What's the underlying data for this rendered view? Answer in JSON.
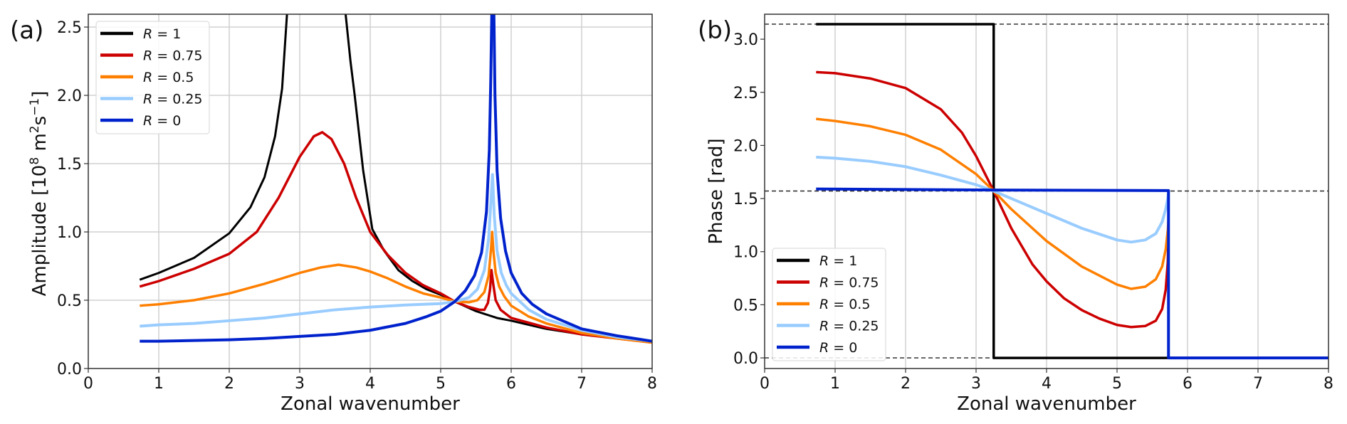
{
  "chart_data": [
    {
      "type": "line",
      "panel_label": "(a)",
      "xlabel": "Zonal wavenumber",
      "ylabel": "Amplitude [10",
      "ylabel_sup1": "8",
      "ylabel_mid": " m",
      "ylabel_sup2": "2",
      "ylabel_mid2": "s",
      "ylabel_sup3": "−1",
      "ylabel_end": "]",
      "xlim": [
        0,
        8
      ],
      "ylim": [
        0,
        2.594
      ],
      "xticks": [
        "0",
        "1",
        "2",
        "3",
        "4",
        "5",
        "6",
        "7",
        "8"
      ],
      "yticks": [
        "0.0",
        "0.5",
        "1.0",
        "1.5",
        "2.0",
        "2.5"
      ],
      "grid": true,
      "legend_position": "upper-left",
      "series": [
        {
          "name": "R = 1",
          "r_symbol": "R",
          "r_rest": " = 1",
          "color": "#000000",
          "width": 3,
          "segments": [
            [
              [
                0.73,
                0.65
              ],
              [
                1,
                0.7
              ],
              [
                1.5,
                0.81
              ],
              [
                2,
                0.99
              ],
              [
                2.3,
                1.18
              ],
              [
                2.5,
                1.4
              ],
              [
                2.65,
                1.7
              ],
              [
                2.75,
                2.05
              ],
              [
                2.82,
                2.6
              ]
            ],
            [
              [
                3.65,
                2.6
              ],
              [
                3.72,
                2.25
              ],
              [
                3.78,
                2.0
              ],
              [
                3.9,
                1.45
              ],
              [
                4.03,
                1.02
              ],
              [
                4.2,
                0.86
              ],
              [
                4.4,
                0.72
              ],
              [
                4.6,
                0.64
              ],
              [
                4.8,
                0.58
              ],
              [
                5.0,
                0.54
              ],
              [
                5.2,
                0.49
              ],
              [
                5.5,
                0.42
              ],
              [
                5.8,
                0.37
              ],
              [
                6.0,
                0.35
              ],
              [
                6.5,
                0.29
              ],
              [
                7.0,
                0.25
              ],
              [
                7.5,
                0.22
              ],
              [
                8.0,
                0.19
              ]
            ]
          ]
        },
        {
          "name": "R = 0.75",
          "r_symbol": "R",
          "r_rest": " = 0.75",
          "color": "#cc0000",
          "width": 3.5,
          "segments": [
            [
              [
                0.73,
                0.6
              ],
              [
                1,
                0.64
              ],
              [
                1.5,
                0.73
              ],
              [
                2,
                0.84
              ],
              [
                2.39,
                1.0
              ],
              [
                2.7,
                1.25
              ],
              [
                3.0,
                1.55
              ],
              [
                3.2,
                1.7
              ],
              [
                3.32,
                1.73
              ],
              [
                3.45,
                1.68
              ],
              [
                3.63,
                1.5
              ],
              [
                3.8,
                1.25
              ],
              [
                4.0,
                1.0
              ],
              [
                4.25,
                0.83
              ],
              [
                4.5,
                0.7
              ],
              [
                4.75,
                0.61
              ],
              [
                5.0,
                0.55
              ],
              [
                5.2,
                0.49
              ],
              [
                5.4,
                0.45
              ],
              [
                5.55,
                0.43
              ],
              [
                5.62,
                0.43
              ],
              [
                5.67,
                0.48
              ],
              [
                5.7,
                0.58
              ],
              [
                5.72,
                0.72
              ],
              [
                5.745,
                0.62
              ],
              [
                5.78,
                0.5
              ],
              [
                5.85,
                0.43
              ],
              [
                6.0,
                0.37
              ],
              [
                6.5,
                0.3
              ],
              [
                7.0,
                0.25
              ],
              [
                7.5,
                0.22
              ],
              [
                8.0,
                0.19
              ]
            ]
          ]
        },
        {
          "name": "R = 0.5",
          "r_symbol": "R",
          "r_rest": " = 0.5",
          "color": "#ff7f00",
          "width": 3.5,
          "segments": [
            [
              [
                0.73,
                0.46
              ],
              [
                1,
                0.47
              ],
              [
                1.5,
                0.5
              ],
              [
                2,
                0.55
              ],
              [
                2.5,
                0.62
              ],
              [
                3.0,
                0.7
              ],
              [
                3.3,
                0.74
              ],
              [
                3.55,
                0.76
              ],
              [
                3.8,
                0.74
              ],
              [
                4.0,
                0.71
              ],
              [
                4.25,
                0.66
              ],
              [
                4.5,
                0.6
              ],
              [
                4.75,
                0.55
              ],
              [
                5.0,
                0.52
              ],
              [
                5.2,
                0.49
              ],
              [
                5.4,
                0.485
              ],
              [
                5.52,
                0.5
              ],
              [
                5.62,
                0.56
              ],
              [
                5.68,
                0.68
              ],
              [
                5.715,
                0.88
              ],
              [
                5.73,
                1.0
              ],
              [
                5.75,
                0.85
              ],
              [
                5.78,
                0.7
              ],
              [
                5.83,
                0.6
              ],
              [
                5.9,
                0.53
              ],
              [
                6.0,
                0.46
              ],
              [
                6.25,
                0.38
              ],
              [
                6.5,
                0.33
              ],
              [
                7.0,
                0.26
              ],
              [
                7.5,
                0.22
              ],
              [
                8.0,
                0.19
              ]
            ]
          ]
        },
        {
          "name": "R = 0.25",
          "r_symbol": "R",
          "r_rest": " = 0.25",
          "color": "#99ccff",
          "width": 4,
          "segments": [
            [
              [
                0.73,
                0.31
              ],
              [
                1,
                0.32
              ],
              [
                1.5,
                0.33
              ],
              [
                2,
                0.35
              ],
              [
                2.5,
                0.37
              ],
              [
                3.0,
                0.4
              ],
              [
                3.5,
                0.43
              ],
              [
                4.0,
                0.45
              ],
              [
                4.5,
                0.465
              ],
              [
                5.0,
                0.475
              ],
              [
                5.2,
                0.49
              ],
              [
                5.4,
                0.52
              ],
              [
                5.52,
                0.58
              ],
              [
                5.62,
                0.72
              ],
              [
                5.68,
                0.95
              ],
              [
                5.71,
                1.2
              ],
              [
                5.735,
                1.42
              ],
              [
                5.76,
                1.12
              ],
              [
                5.8,
                0.86
              ],
              [
                5.86,
                0.7
              ],
              [
                5.93,
                0.61
              ],
              [
                6.0,
                0.55
              ],
              [
                6.25,
                0.43
              ],
              [
                6.5,
                0.36
              ],
              [
                7.0,
                0.28
              ],
              [
                7.5,
                0.23
              ],
              [
                8.0,
                0.2
              ]
            ]
          ]
        },
        {
          "name": "R = 0",
          "r_symbol": "R",
          "r_rest": " = 0",
          "color": "#0022cc",
          "width": 4,
          "segments": [
            [
              [
                0.73,
                0.2
              ],
              [
                1,
                0.2
              ],
              [
                1.5,
                0.205
              ],
              [
                2,
                0.21
              ],
              [
                2.5,
                0.22
              ],
              [
                3.0,
                0.235
              ],
              [
                3.5,
                0.25
              ],
              [
                4.0,
                0.28
              ],
              [
                4.5,
                0.33
              ],
              [
                4.8,
                0.38
              ],
              [
                5.0,
                0.42
              ],
              [
                5.2,
                0.49
              ],
              [
                5.35,
                0.57
              ],
              [
                5.48,
                0.68
              ],
              [
                5.58,
                0.85
              ],
              [
                5.65,
                1.15
              ],
              [
                5.69,
                1.6
              ],
              [
                5.71,
                2.1
              ],
              [
                5.725,
                2.6
              ]
            ],
            [
              [
                5.755,
                2.6
              ],
              [
                5.77,
                2.0
              ],
              [
                5.8,
                1.45
              ],
              [
                5.85,
                1.1
              ],
              [
                5.92,
                0.86
              ],
              [
                6.0,
                0.7
              ],
              [
                6.15,
                0.55
              ],
              [
                6.3,
                0.47
              ],
              [
                6.5,
                0.4
              ],
              [
                7.0,
                0.29
              ],
              [
                7.5,
                0.24
              ],
              [
                8.0,
                0.2
              ]
            ]
          ]
        }
      ]
    },
    {
      "type": "line",
      "panel_label": "(b)",
      "xlabel": "Zonal wavenumber",
      "ylabel": "Phase [rad]",
      "xlim": [
        0,
        8
      ],
      "ylim": [
        -0.1,
        3.235
      ],
      "xticks": [
        "0",
        "1",
        "2",
        "3",
        "4",
        "5",
        "6",
        "7",
        "8"
      ],
      "yticks": [
        "0.0",
        "0.5",
        "1.0",
        "1.5",
        "2.0",
        "2.5",
        "3.0"
      ],
      "grid": true,
      "reference_lines": [
        0,
        1.5708,
        3.1416
      ],
      "legend_position": "lower-left",
      "series": [
        {
          "name": "R = 1",
          "r_symbol": "R",
          "r_rest": " = 1",
          "color": "#000000",
          "width": 3.5,
          "segments": [
            [
              [
                0.73,
                3.1416
              ],
              [
                3.25,
                3.1416
              ],
              [
                3.25,
                0
              ],
              [
                8.0,
                0
              ]
            ]
          ]
        },
        {
          "name": "R = 0.75",
          "r_symbol": "R",
          "r_rest": " = 0.75",
          "color": "#cc0000",
          "width": 3.5,
          "segments": [
            [
              [
                0.73,
                2.69
              ],
              [
                1,
                2.68
              ],
              [
                1.5,
                2.63
              ],
              [
                2,
                2.54
              ],
              [
                2.5,
                2.34
              ],
              [
                2.8,
                2.12
              ],
              [
                3.0,
                1.9
              ],
              [
                3.25,
                1.5708
              ],
              [
                3.5,
                1.22
              ],
              [
                3.8,
                0.88
              ],
              [
                4.0,
                0.72
              ],
              [
                4.25,
                0.56
              ],
              [
                4.5,
                0.45
              ],
              [
                4.75,
                0.37
              ],
              [
                5.0,
                0.31
              ],
              [
                5.2,
                0.29
              ],
              [
                5.4,
                0.3
              ],
              [
                5.55,
                0.35
              ],
              [
                5.64,
                0.46
              ],
              [
                5.69,
                0.64
              ],
              [
                5.72,
                0.9
              ],
              [
                5.73,
                1.2
              ]
            ]
          ]
        },
        {
          "name": "R = 0.5",
          "r_symbol": "R",
          "r_rest": " = 0.5",
          "color": "#ff7f00",
          "width": 3.5,
          "segments": [
            [
              [
                0.73,
                2.25
              ],
              [
                1,
                2.23
              ],
              [
                1.5,
                2.18
              ],
              [
                2,
                2.1
              ],
              [
                2.5,
                1.96
              ],
              [
                3.0,
                1.73
              ],
              [
                3.25,
                1.5708
              ],
              [
                3.5,
                1.4
              ],
              [
                4.0,
                1.1
              ],
              [
                4.5,
                0.86
              ],
              [
                5.0,
                0.69
              ],
              [
                5.2,
                0.65
              ],
              [
                5.4,
                0.67
              ],
              [
                5.55,
                0.74
              ],
              [
                5.64,
                0.86
              ],
              [
                5.69,
                1.02
              ],
              [
                5.72,
                1.2
              ],
              [
                5.73,
                1.3
              ]
            ]
          ]
        },
        {
          "name": "R = 0.25",
          "r_symbol": "R",
          "r_rest": " = 0.25",
          "color": "#99ccff",
          "width": 4,
          "segments": [
            [
              [
                0.73,
                1.89
              ],
              [
                1,
                1.88
              ],
              [
                1.5,
                1.85
              ],
              [
                2,
                1.8
              ],
              [
                2.5,
                1.72
              ],
              [
                3.0,
                1.63
              ],
              [
                3.25,
                1.5708
              ],
              [
                3.5,
                1.5
              ],
              [
                4.0,
                1.36
              ],
              [
                4.5,
                1.22
              ],
              [
                5.0,
                1.11
              ],
              [
                5.2,
                1.09
              ],
              [
                5.4,
                1.11
              ],
              [
                5.55,
                1.17
              ],
              [
                5.64,
                1.28
              ],
              [
                5.69,
                1.4
              ],
              [
                5.72,
                1.5
              ],
              [
                5.73,
                1.56
              ]
            ]
          ]
        },
        {
          "name": "R = 0",
          "r_symbol": "R",
          "r_rest": " = 0",
          "color": "#0022cc",
          "width": 4,
          "segments": [
            [
              [
                0.73,
                1.59
              ],
              [
                3.25,
                1.58
              ],
              [
                5.73,
                1.575
              ],
              [
                5.73,
                0
              ],
              [
                8.0,
                0
              ]
            ]
          ]
        }
      ]
    }
  ]
}
